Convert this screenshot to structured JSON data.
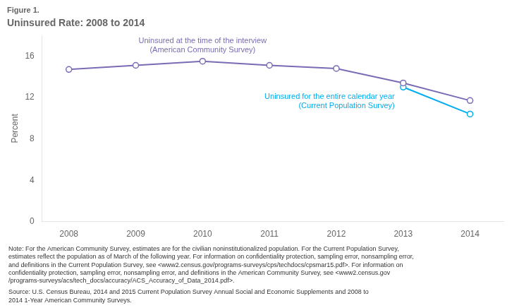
{
  "chart_data": {
    "type": "line",
    "subtitle": "Figure 1.",
    "title": "Uninsured Rate: 2008 to 2014",
    "y_label": "Percent",
    "xlim": [
      2007.6,
      2014.5
    ],
    "xticks": [
      2008,
      2009,
      2010,
      2011,
      2012,
      2013,
      2014
    ],
    "ylim": [
      0,
      18
    ],
    "yticks": [
      0,
      4,
      8,
      12,
      16
    ],
    "grid": false,
    "series": [
      {
        "name": "Uninsured at the time of the interview\n(American Community Survey)",
        "color": "#7B6BB5",
        "marker": "circle",
        "x": [
          2008,
          2009,
          2010,
          2011,
          2012,
          2013,
          2014
        ],
        "values": [
          14.7,
          15.1,
          15.5,
          15.1,
          14.8,
          13.4,
          11.7
        ]
      },
      {
        "name": "Uninsured for the entire calendar year\n(Current Population Survey)",
        "color": "#00AEEF",
        "marker": "circle",
        "x": [
          2013,
          2014
        ],
        "values": [
          13.0,
          10.4
        ]
      }
    ],
    "notes": [
      "Note: For the American Community Survey, estimates are for the civilian noninstitutionalized population. For the Current Population Survey,\nestimates reflect the population as of March of the following year. For information on confidentiality protection, sampling error, nonsampling error,\nand definitions in the Current Population Survey, see <www2.census.gov/programs-surveys/cps/techdocs/cpsmar15.pdf>. For information on\nconfidentiality protection, sampling error, nonsampling error, and definitions in the American Community Survey, see <www2.census.gov\n/programs-surveys/acs/tech_docs/accuracy/ACS_Accuracy_of_Data_2014.pdf>.",
      "Source: U.S. Census Bureau, 2014 and 2015 Current Population Survey Annual Social and Economic Supplements and 2008 to\n2014 1-Year American Community Surveys."
    ]
  }
}
